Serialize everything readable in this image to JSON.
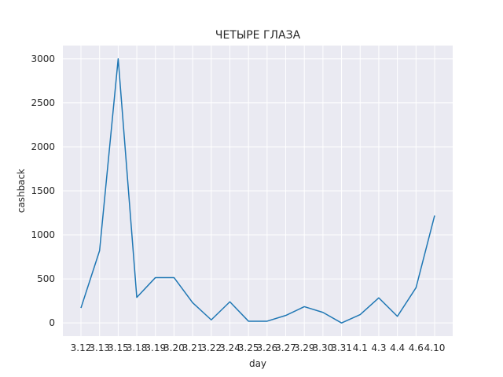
{
  "chart_data": {
    "type": "line",
    "title": "ЧЕТЫРЕ ГЛАЗА",
    "xlabel": "day",
    "ylabel": "cashback",
    "categories": [
      "3.12",
      "3.13",
      "3.15",
      "3.18",
      "3.19",
      "3.20",
      "3.21",
      "3.22",
      "3.24",
      "3.25",
      "3.26",
      "3.27",
      "3.29",
      "3.30",
      "3.31",
      "4.1",
      "4.3",
      "4.4",
      "4.6",
      "4.10"
    ],
    "series": [
      {
        "values": [
          170,
          820,
          3000,
          290,
          515,
          515,
          230,
          35,
          240,
          20,
          20,
          85,
          185,
          120,
          0,
          95,
          285,
          75,
          400,
          1220
        ]
      }
    ],
    "ylim": [
      -150,
      3150
    ],
    "yticks": [
      0,
      500,
      1000,
      1500,
      2000,
      2500,
      3000
    ],
    "grid": true,
    "colors": {
      "line": "#1f77b4",
      "plot_bg": "#eaeaf2",
      "grid": "#ffffff"
    }
  }
}
